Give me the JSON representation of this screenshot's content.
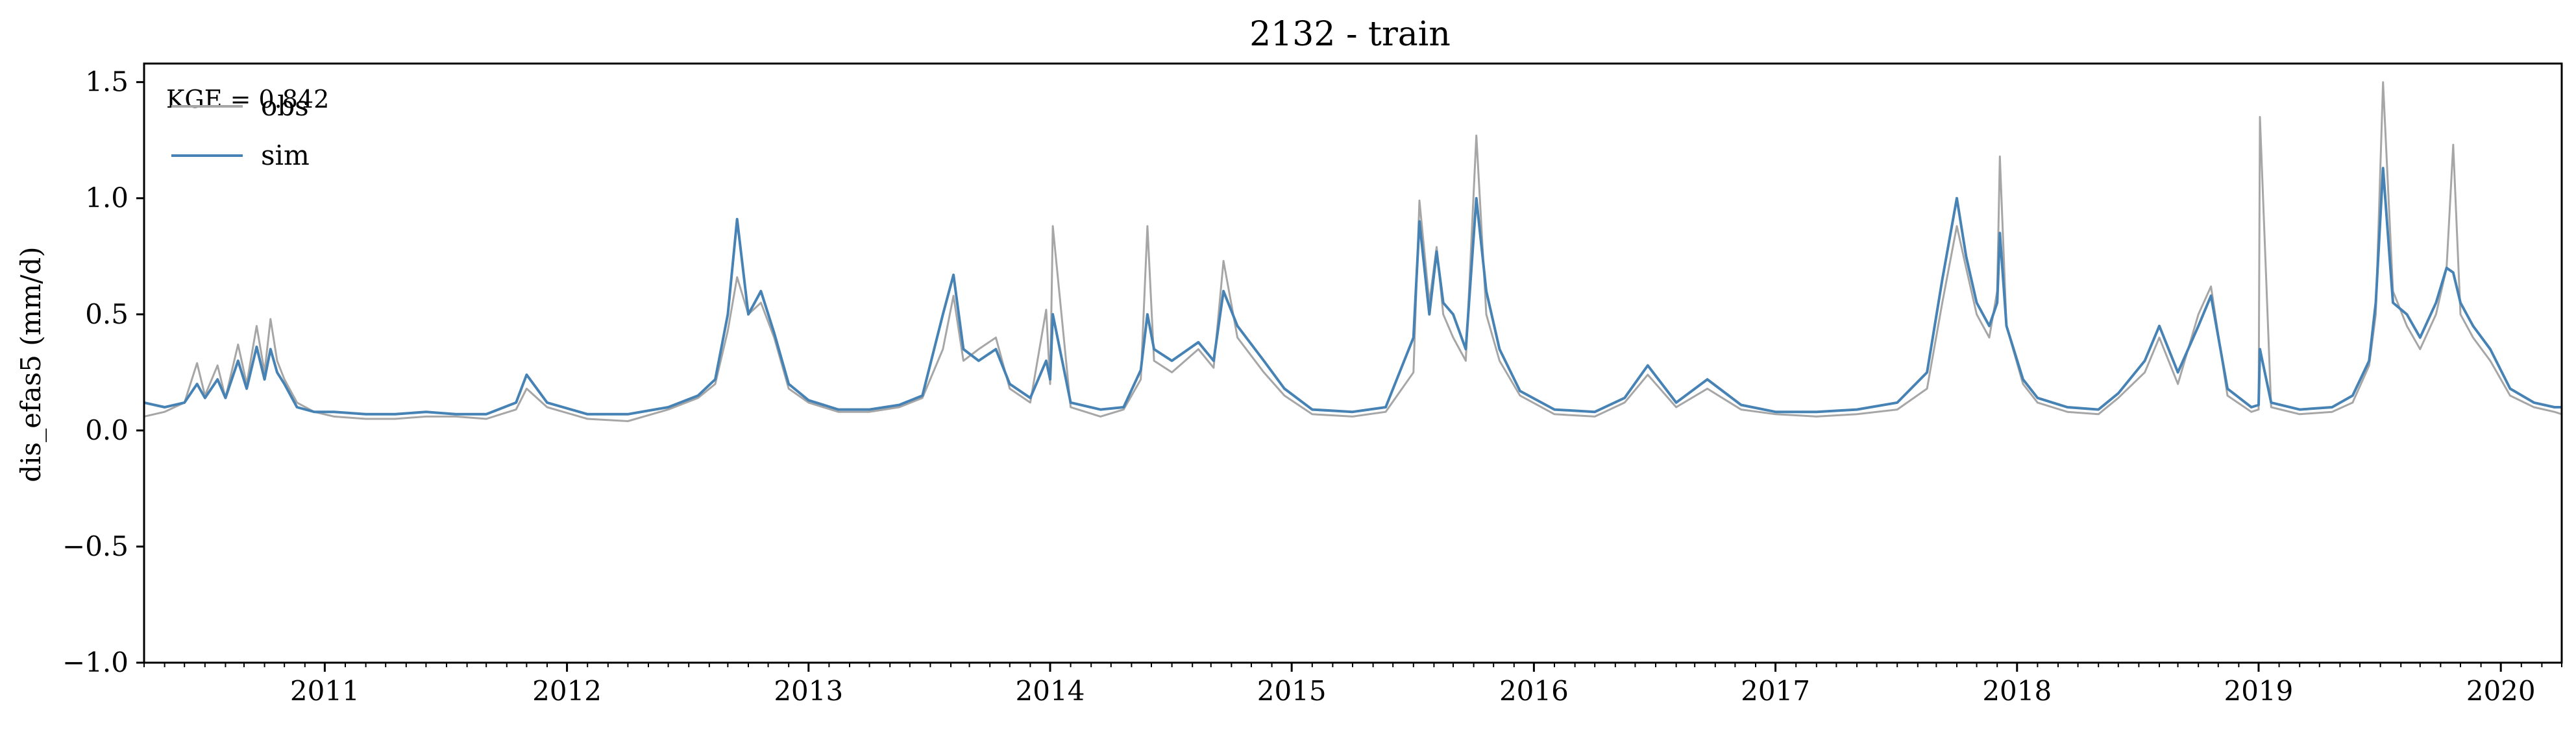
{
  "chart_data": {
    "type": "line",
    "title": "2132 - train",
    "ylabel": "dis_efas5 (mm/d)",
    "xlabel": "",
    "ylim": [
      -1.0,
      1.58
    ],
    "xlim": [
      "2010-10-01",
      "2020-10-01"
    ],
    "yticks": [
      "−1.0",
      "−0.5",
      "0.0",
      "0.5",
      "1.0",
      "1.5"
    ],
    "ytick_values": [
      -1.0,
      -0.5,
      0.0,
      0.5,
      1.0,
      1.5
    ],
    "xticks": [
      "2011",
      "2012",
      "2013",
      "2014",
      "2015",
      "2016",
      "2017",
      "2018",
      "2019",
      "2020"
    ],
    "grid": false,
    "legend_position": "upper-left",
    "annotation": "KGE = 0.842",
    "colors": {
      "obs": "#a6a6a6",
      "sim": "#4682b4"
    },
    "series": [
      {
        "name": "obs",
        "x": [
          "2010-10-01",
          "2010-11-01",
          "2010-12-01",
          "2010-12-20",
          "2011-01-01",
          "2011-01-20",
          "2011-02-01",
          "2011-02-20",
          "2011-03-05",
          "2011-03-20",
          "2011-04-01",
          "2011-04-10",
          "2011-04-20",
          "2011-05-01",
          "2011-05-20",
          "2011-06-15",
          "2011-07-15",
          "2011-09-01",
          "2011-10-15",
          "2011-12-01",
          "2012-01-15",
          "2012-03-01",
          "2012-04-15",
          "2012-05-01",
          "2012-06-01",
          "2012-08-01",
          "2012-10-01",
          "2012-12-01",
          "2013-01-15",
          "2013-02-10",
          "2013-03-01",
          "2013-03-15",
          "2013-04-01",
          "2013-04-20",
          "2013-05-10",
          "2013-06-01",
          "2013-07-01",
          "2013-08-15",
          "2013-10-01",
          "2013-11-15",
          "2013-12-20",
          "2014-01-20",
          "2014-02-05",
          "2014-02-20",
          "2014-03-15",
          "2014-04-10",
          "2014-05-01",
          "2014-06-01",
          "2014-06-25",
          "2014-07-01",
          "2014-07-05",
          "2014-08-01",
          "2014-09-15",
          "2014-10-20",
          "2014-11-15",
          "2014-11-25",
          "2014-12-05",
          "2015-01-01",
          "2015-02-10",
          "2015-03-05",
          "2015-03-20",
          "2015-04-10",
          "2015-05-20",
          "2015-06-20",
          "2015-08-01",
          "2015-10-01",
          "2015-11-20",
          "2016-01-01",
          "2016-01-10",
          "2016-01-25",
          "2016-02-05",
          "2016-02-15",
          "2016-03-01",
          "2016-03-20",
          "2016-04-05",
          "2016-04-20",
          "2016-05-10",
          "2016-06-10",
          "2016-08-01",
          "2016-10-01",
          "2016-11-15",
          "2016-12-20",
          "2017-02-01",
          "2017-03-20",
          "2017-05-10",
          "2017-07-01",
          "2017-09-01",
          "2017-11-01",
          "2018-01-01",
          "2018-02-15",
          "2018-03-10",
          "2018-04-01",
          "2018-04-15",
          "2018-05-01",
          "2018-05-20",
          "2018-06-01",
          "2018-06-05",
          "2018-06-15",
          "2018-07-10",
          "2018-08-01",
          "2018-09-15",
          "2018-11-01",
          "2018-12-01",
          "2019-01-10",
          "2019-02-01",
          "2019-03-01",
          "2019-04-01",
          "2019-04-20",
          "2019-05-15",
          "2019-06-20",
          "2019-07-01",
          "2019-07-03",
          "2019-07-20",
          "2019-09-01",
          "2019-10-20",
          "2019-11-20",
          "2019-12-15",
          "2019-12-25",
          "2020-01-05",
          "2020-01-20",
          "2020-02-10",
          "2020-03-01",
          "2020-03-25",
          "2020-04-10",
          "2020-04-20",
          "2020-05-01",
          "2020-05-20",
          "2020-06-15",
          "2020-07-15",
          "2020-08-20",
          "2020-09-20",
          "2020-10-01"
        ],
        "values": [
          0.06,
          0.08,
          0.12,
          0.29,
          0.15,
          0.28,
          0.14,
          0.37,
          0.2,
          0.45,
          0.25,
          0.48,
          0.3,
          0.22,
          0.12,
          0.08,
          0.06,
          0.05,
          0.05,
          0.06,
          0.06,
          0.05,
          0.09,
          0.18,
          0.1,
          0.05,
          0.04,
          0.09,
          0.14,
          0.2,
          0.43,
          0.66,
          0.5,
          0.55,
          0.4,
          0.18,
          0.12,
          0.08,
          0.08,
          0.1,
          0.14,
          0.35,
          0.58,
          0.3,
          0.35,
          0.4,
          0.18,
          0.12,
          0.52,
          0.2,
          0.88,
          0.1,
          0.06,
          0.09,
          0.22,
          0.88,
          0.3,
          0.25,
          0.35,
          0.27,
          0.73,
          0.4,
          0.25,
          0.15,
          0.07,
          0.06,
          0.08,
          0.25,
          0.99,
          0.55,
          0.79,
          0.5,
          0.4,
          0.3,
          1.27,
          0.5,
          0.3,
          0.15,
          0.07,
          0.06,
          0.12,
          0.24,
          0.1,
          0.18,
          0.09,
          0.07,
          0.06,
          0.07,
          0.09,
          0.18,
          0.55,
          0.88,
          0.7,
          0.5,
          0.4,
          0.6,
          1.18,
          0.45,
          0.2,
          0.12,
          0.08,
          0.07,
          0.14,
          0.25,
          0.4,
          0.2,
          0.5,
          0.62,
          0.15,
          0.08,
          0.09,
          1.35,
          0.1,
          0.07,
          0.08,
          0.12,
          0.28,
          0.5,
          1.5,
          0.6,
          0.45,
          0.35,
          0.5,
          0.7,
          1.23,
          0.5,
          0.4,
          0.3,
          0.15,
          0.1,
          0.08,
          0.07
        ]
      },
      {
        "name": "sim",
        "x": [
          "2010-10-01",
          "2010-11-01",
          "2010-12-01",
          "2010-12-20",
          "2011-01-01",
          "2011-01-20",
          "2011-02-01",
          "2011-02-20",
          "2011-03-05",
          "2011-03-20",
          "2011-04-01",
          "2011-04-10",
          "2011-04-20",
          "2011-05-01",
          "2011-05-20",
          "2011-06-15",
          "2011-07-15",
          "2011-09-01",
          "2011-10-15",
          "2011-12-01",
          "2012-01-15",
          "2012-03-01",
          "2012-04-15",
          "2012-05-01",
          "2012-06-01",
          "2012-08-01",
          "2012-10-01",
          "2012-12-01",
          "2013-01-15",
          "2013-02-10",
          "2013-03-01",
          "2013-03-15",
          "2013-04-01",
          "2013-04-20",
          "2013-05-10",
          "2013-06-01",
          "2013-07-01",
          "2013-08-15",
          "2013-10-01",
          "2013-11-15",
          "2013-12-20",
          "2014-01-20",
          "2014-02-05",
          "2014-02-20",
          "2014-03-15",
          "2014-04-10",
          "2014-05-01",
          "2014-06-01",
          "2014-06-25",
          "2014-07-01",
          "2014-07-05",
          "2014-08-01",
          "2014-09-15",
          "2014-10-20",
          "2014-11-15",
          "2014-11-25",
          "2014-12-05",
          "2015-01-01",
          "2015-02-10",
          "2015-03-05",
          "2015-03-20",
          "2015-04-10",
          "2015-05-20",
          "2015-06-20",
          "2015-08-01",
          "2015-10-01",
          "2015-11-20",
          "2016-01-01",
          "2016-01-10",
          "2016-01-25",
          "2016-02-05",
          "2016-02-15",
          "2016-03-01",
          "2016-03-20",
          "2016-04-05",
          "2016-04-20",
          "2016-05-10",
          "2016-06-10",
          "2016-08-01",
          "2016-10-01",
          "2016-11-15",
          "2016-12-20",
          "2017-02-01",
          "2017-03-20",
          "2017-05-10",
          "2017-07-01",
          "2017-09-01",
          "2017-11-01",
          "2018-01-01",
          "2018-02-15",
          "2018-03-10",
          "2018-04-01",
          "2018-04-15",
          "2018-05-01",
          "2018-05-20",
          "2018-06-01",
          "2018-06-05",
          "2018-06-15",
          "2018-07-10",
          "2018-08-01",
          "2018-09-15",
          "2018-11-01",
          "2018-12-01",
          "2019-01-10",
          "2019-02-01",
          "2019-03-01",
          "2019-04-01",
          "2019-04-20",
          "2019-05-15",
          "2019-06-20",
          "2019-07-01",
          "2019-07-03",
          "2019-07-20",
          "2019-09-01",
          "2019-10-20",
          "2019-11-20",
          "2019-12-15",
          "2019-12-25",
          "2020-01-05",
          "2020-01-20",
          "2020-02-10",
          "2020-03-01",
          "2020-03-25",
          "2020-04-10",
          "2020-04-20",
          "2020-05-01",
          "2020-05-20",
          "2020-06-15",
          "2020-07-15",
          "2020-08-20",
          "2020-09-20",
          "2020-10-01"
        ],
        "values": [
          0.12,
          0.1,
          0.12,
          0.2,
          0.14,
          0.22,
          0.14,
          0.3,
          0.18,
          0.36,
          0.22,
          0.35,
          0.25,
          0.2,
          0.1,
          0.08,
          0.08,
          0.07,
          0.07,
          0.08,
          0.07,
          0.07,
          0.12,
          0.24,
          0.12,
          0.07,
          0.07,
          0.1,
          0.15,
          0.22,
          0.5,
          0.91,
          0.5,
          0.6,
          0.42,
          0.2,
          0.13,
          0.09,
          0.09,
          0.11,
          0.15,
          0.5,
          0.67,
          0.35,
          0.3,
          0.35,
          0.2,
          0.14,
          0.3,
          0.22,
          0.5,
          0.12,
          0.09,
          0.1,
          0.26,
          0.5,
          0.35,
          0.3,
          0.38,
          0.3,
          0.6,
          0.45,
          0.3,
          0.18,
          0.09,
          0.08,
          0.1,
          0.4,
          0.9,
          0.5,
          0.77,
          0.55,
          0.5,
          0.35,
          1.0,
          0.6,
          0.35,
          0.17,
          0.09,
          0.08,
          0.14,
          0.28,
          0.12,
          0.22,
          0.11,
          0.08,
          0.08,
          0.09,
          0.12,
          0.25,
          0.65,
          1.0,
          0.75,
          0.55,
          0.45,
          0.55,
          0.85,
          0.45,
          0.22,
          0.14,
          0.1,
          0.09,
          0.16,
          0.3,
          0.45,
          0.25,
          0.45,
          0.58,
          0.18,
          0.1,
          0.11,
          0.35,
          0.12,
          0.09,
          0.1,
          0.15,
          0.3,
          0.55,
          1.13,
          0.55,
          0.5,
          0.4,
          0.55,
          0.7,
          0.68,
          0.55,
          0.45,
          0.35,
          0.18,
          0.12,
          0.1,
          0.1
        ]
      }
    ]
  }
}
